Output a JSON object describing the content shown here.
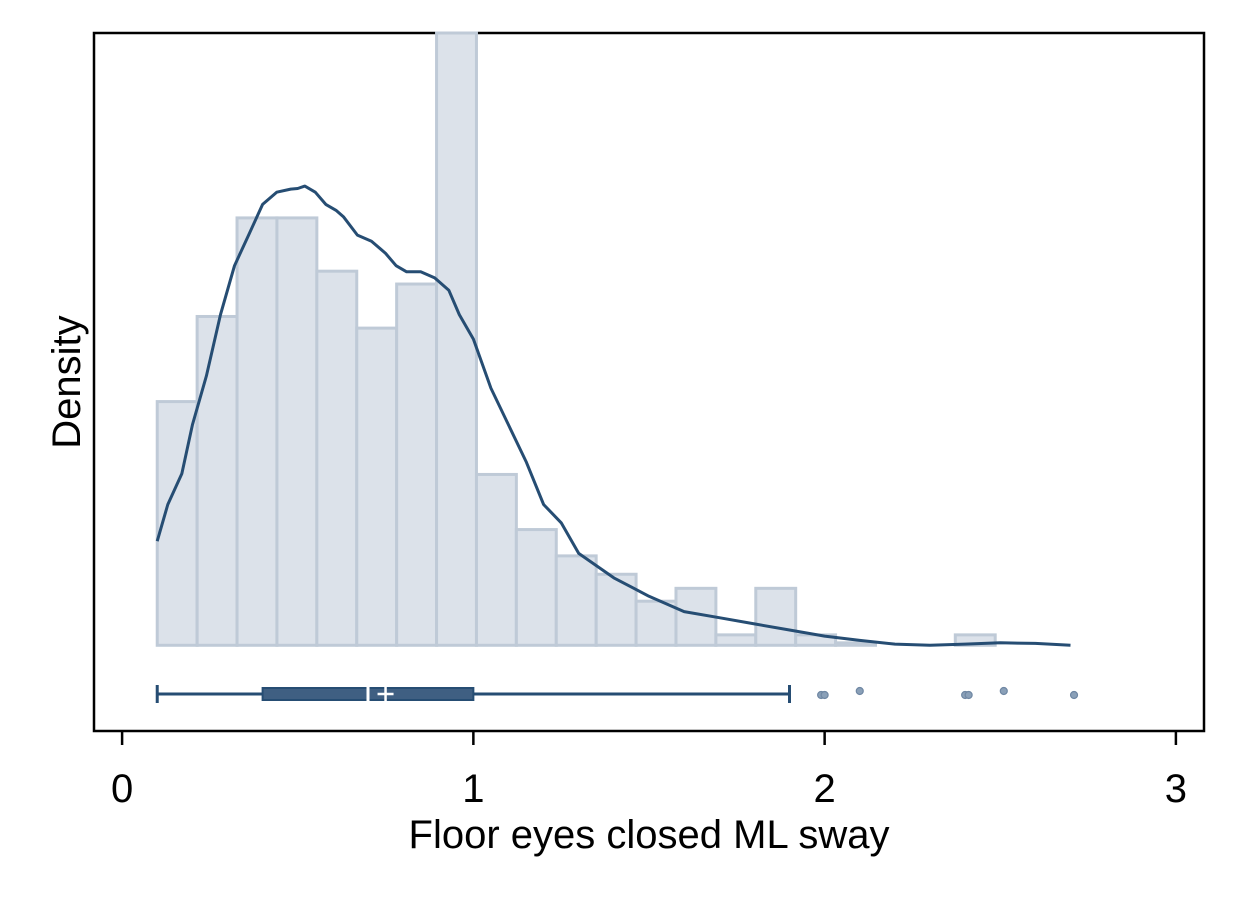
{
  "chart_data": {
    "type": "histogram",
    "xlabel": "Floor eyes closed ML sway",
    "ylabel": "Density",
    "xlim": [
      -0.08,
      3.08
    ],
    "ylim": [
      -0.14,
      1.0
    ],
    "x_ticks": [
      "0",
      "1",
      "2",
      "3"
    ],
    "x_tick_values": [
      0,
      1,
      2,
      3
    ],
    "grid": false,
    "legend": "none",
    "colors": {
      "bar_fill": "#dce2ea",
      "bar_stroke": "#bfcad7",
      "kde": "#264d73",
      "box": "#3f5f82",
      "outlier": "#8aa0b8"
    },
    "histogram": {
      "bin_width": 0.1136,
      "bin_edges": [
        0.1,
        0.2136,
        0.3272,
        0.4408,
        0.5544,
        0.668,
        0.7816,
        0.8952,
        1.0088,
        1.1224,
        1.236,
        1.3496,
        1.4632,
        1.5768,
        1.6904,
        1.804,
        1.9176,
        2.0312,
        2.1448,
        2.2584,
        2.372,
        2.4856
      ],
      "values": [
        0.398,
        0.537,
        0.698,
        0.698,
        0.611,
        0.518,
        0.59,
        1.0,
        0.279,
        0.189,
        0.146,
        0.116,
        0.072,
        0.093,
        0.017,
        0.093,
        0.017,
        0.004,
        0.0,
        0.0,
        0.017
      ]
    },
    "kde": {
      "x": [
        0.1,
        0.13,
        0.17,
        0.2,
        0.24,
        0.28,
        0.32,
        0.36,
        0.4,
        0.44,
        0.48,
        0.5,
        0.52,
        0.55,
        0.58,
        0.61,
        0.63,
        0.67,
        0.71,
        0.75,
        0.78,
        0.81,
        0.85,
        0.89,
        0.93,
        0.96,
        1.0,
        1.05,
        1.1,
        1.15,
        1.2,
        1.25,
        1.3,
        1.4,
        1.5,
        1.6,
        1.7,
        1.8,
        1.9,
        2.0,
        2.1,
        2.2,
        2.3,
        2.4,
        2.5,
        2.6,
        2.7
      ],
      "y": [
        0.17,
        0.23,
        0.28,
        0.36,
        0.44,
        0.54,
        0.62,
        0.67,
        0.72,
        0.74,
        0.745,
        0.746,
        0.75,
        0.74,
        0.72,
        0.71,
        0.7,
        0.67,
        0.66,
        0.64,
        0.62,
        0.61,
        0.61,
        0.6,
        0.58,
        0.54,
        0.5,
        0.42,
        0.36,
        0.3,
        0.23,
        0.2,
        0.15,
        0.11,
        0.08,
        0.055,
        0.045,
        0.035,
        0.025,
        0.015,
        0.008,
        0.002,
        0.0,
        0.002,
        0.004,
        0.003,
        0.0
      ]
    },
    "boxplot": {
      "whisker_low": 0.1,
      "q1": 0.4,
      "median": 0.7,
      "mean": 0.75,
      "q3": 1.0,
      "whisker_high": 1.9,
      "outliers": [
        1.99,
        2.0,
        2.1,
        2.4,
        2.41,
        2.51,
        2.71
      ]
    }
  }
}
